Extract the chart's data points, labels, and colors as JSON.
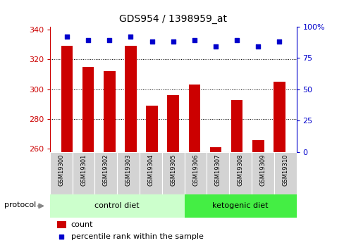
{
  "title": "GDS954 / 1398959_at",
  "samples": [
    "GSM19300",
    "GSM19301",
    "GSM19302",
    "GSM19303",
    "GSM19304",
    "GSM19305",
    "GSM19306",
    "GSM19307",
    "GSM19308",
    "GSM19309",
    "GSM19310"
  ],
  "counts": [
    329,
    315,
    312,
    329,
    289,
    296,
    303,
    261,
    293,
    266,
    305
  ],
  "percentiles": [
    92,
    89,
    89,
    92,
    88,
    88,
    89,
    84,
    89,
    84,
    88
  ],
  "ylim_left": [
    258,
    342
  ],
  "ylim_right": [
    0,
    100
  ],
  "yticks_left": [
    260,
    280,
    300,
    320,
    340
  ],
  "yticks_right": [
    0,
    25,
    50,
    75,
    100
  ],
  "ytick_right_labels": [
    "0",
    "25",
    "50",
    "75",
    "100%"
  ],
  "bar_color": "#cc0000",
  "dot_color": "#0000cc",
  "control_label": "control diet",
  "ketogenic_label": "ketogenic diet",
  "protocol_label": "protocol",
  "legend_count": "count",
  "legend_percentile": "percentile rank within the sample",
  "bg_plot": "#ffffff",
  "bg_xtick": "#d3d3d3",
  "bg_protocol_control": "#ccffcc",
  "bg_protocol_ketogenic": "#44ee44",
  "bar_bottom": 258,
  "n_control": 6,
  "n_ketogenic": 5
}
